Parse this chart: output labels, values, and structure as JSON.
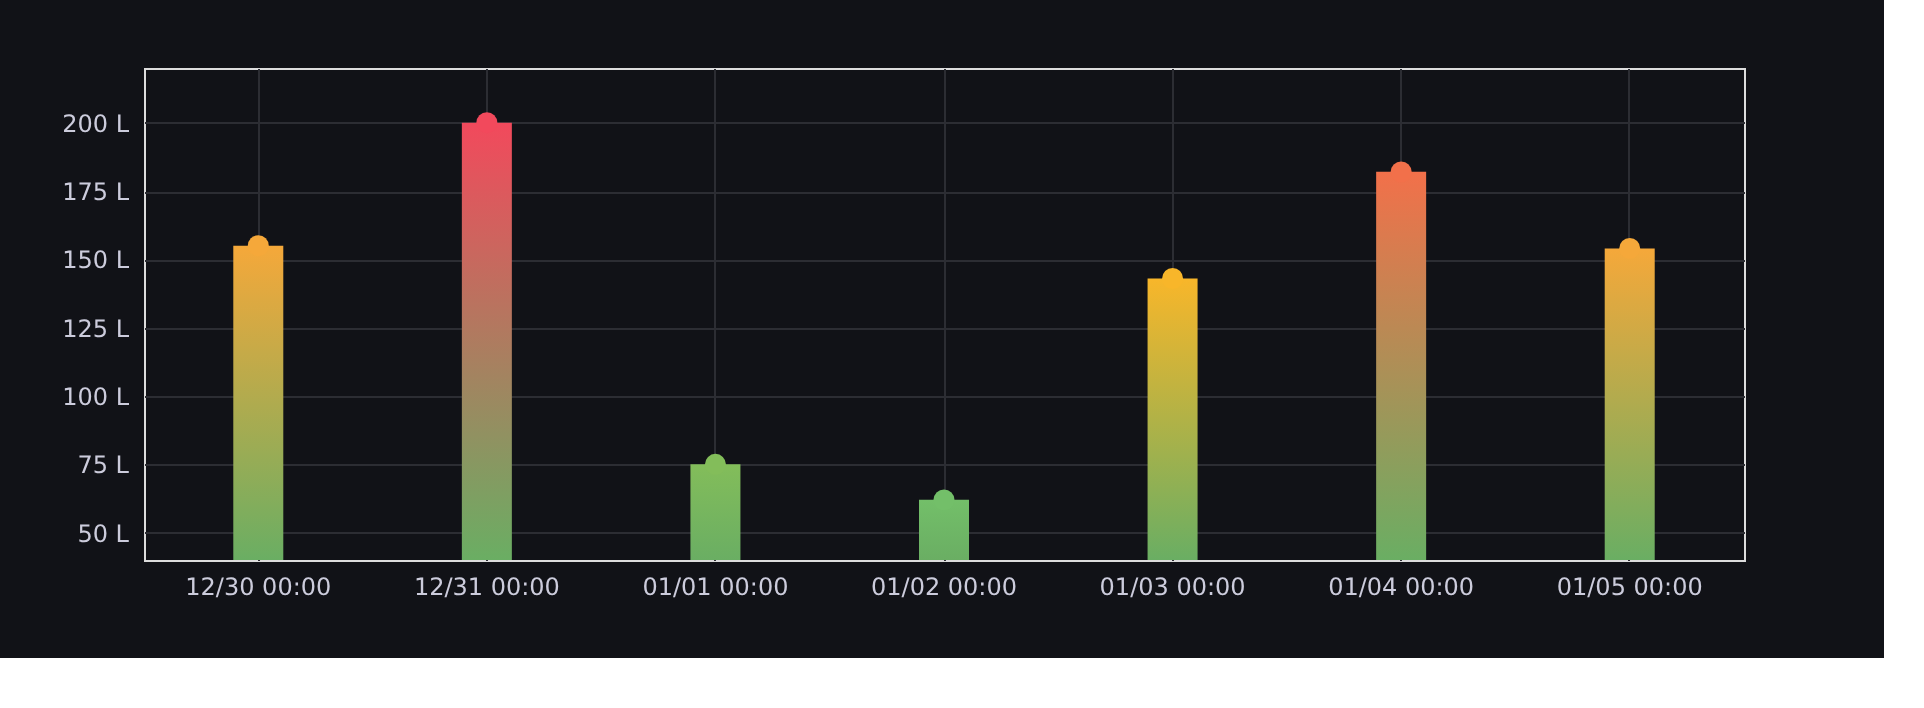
{
  "chart_data": {
    "type": "bar",
    "categories": [
      "12/30 00:00",
      "12/31 00:00",
      "01/01 00:00",
      "01/02 00:00",
      "01/03 00:00",
      "01/04 00:00",
      "01/05 00:00"
    ],
    "series": [
      {
        "values": [
          155,
          200,
          75,
          62,
          143,
          182,
          154
        ],
        "colors": [
          "#f5a83a",
          "#f2495c",
          "#83bd5a",
          "#73bf69",
          "#f8b62a",
          "#f2704a",
          "#f5a83a"
        ]
      },
      {
        "type": "scatter",
        "marker": "circle",
        "values": [
          155,
          200,
          75,
          62,
          143,
          182,
          154
        ],
        "colors": [
          "#f5a83a",
          "#f2495c",
          "#83bd5a",
          "#73bf69",
          "#f8b62a",
          "#f2704a",
          "#f5a83a"
        ]
      }
    ],
    "ylim": [
      40,
      220
    ],
    "yticks": [
      {
        "value": 50,
        "label": "50 L"
      },
      {
        "value": 75,
        "label": "75 L"
      },
      {
        "value": 100,
        "label": "100 L"
      },
      {
        "value": 125,
        "label": "125 L"
      },
      {
        "value": 150,
        "label": "150 L"
      },
      {
        "value": 175,
        "label": "175 L"
      },
      {
        "value": 200,
        "label": "200 L"
      }
    ],
    "grid": true
  }
}
